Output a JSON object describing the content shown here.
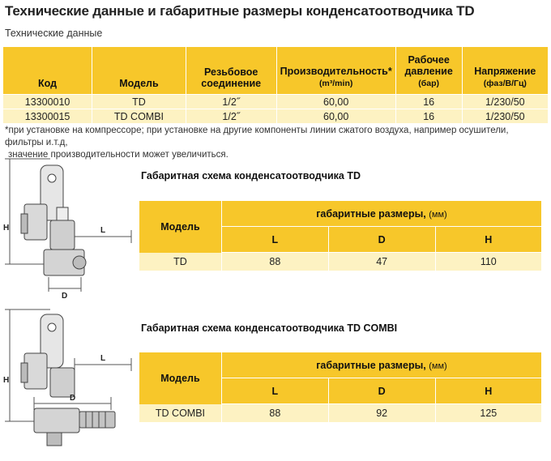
{
  "header": {
    "title": "Технические данные и габаритные размеры конденсатоотводчика TD",
    "subtitle": "Технические данные"
  },
  "spec_table": {
    "columns": {
      "code": "Код",
      "model": "Модель",
      "thread_line1": "Резьбовое",
      "thread_line2": "соединение",
      "capacity": "Производительность*",
      "capacity_unit": "(m³/min)",
      "pressure_line1": "Рабочее",
      "pressure_line2": "давление",
      "pressure_unit": "(бар)",
      "voltage": "Напряжение",
      "voltage_unit": "(фаз/В/Гц)"
    },
    "rows": [
      {
        "code": "13300010",
        "model": "TD",
        "thread": "1/2˝",
        "capacity": "60,00",
        "pressure": "16",
        "voltage": "1/230/50"
      },
      {
        "code": "13300015",
        "model": "TD COMBI",
        "thread": "1/2˝",
        "capacity": "60,00",
        "pressure": "16",
        "voltage": "1/230/50"
      }
    ]
  },
  "footnote": {
    "line1": "*при установке на компрессоре; при установке на другие компоненты линии сжатого воздуха, например осушители, фильтры и.т.д,",
    "line2": "значение производительности может увеличиться."
  },
  "td_section": {
    "title": "Габаритная схема конденсатоотводчика TD",
    "model_header": "Модель",
    "group_header": "габаритные размеры,",
    "unit": "(мм)",
    "labels": {
      "L": "L",
      "D": "D",
      "H": "H"
    },
    "row": {
      "model": "TD",
      "L": "88",
      "D": "47",
      "H": "110"
    },
    "drawing_labels": {
      "H": "H",
      "L": "L",
      "D": "D"
    }
  },
  "combi_section": {
    "title": "Габаритная схема конденсатоотводчика TD COMBI",
    "model_header": "Модель",
    "group_header": "габаритные размеры,",
    "unit": "(мм)",
    "labels": {
      "L": "L",
      "D": "D",
      "H": "H"
    },
    "row": {
      "model": "TD COMBI",
      "L": "88",
      "D": "92",
      "H": "125"
    },
    "drawing_labels": {
      "H": "H",
      "L": "L",
      "D": "D"
    }
  },
  "colors": {
    "header_yellow": "#f7c72a",
    "row_cream": "#fdf2c2"
  }
}
